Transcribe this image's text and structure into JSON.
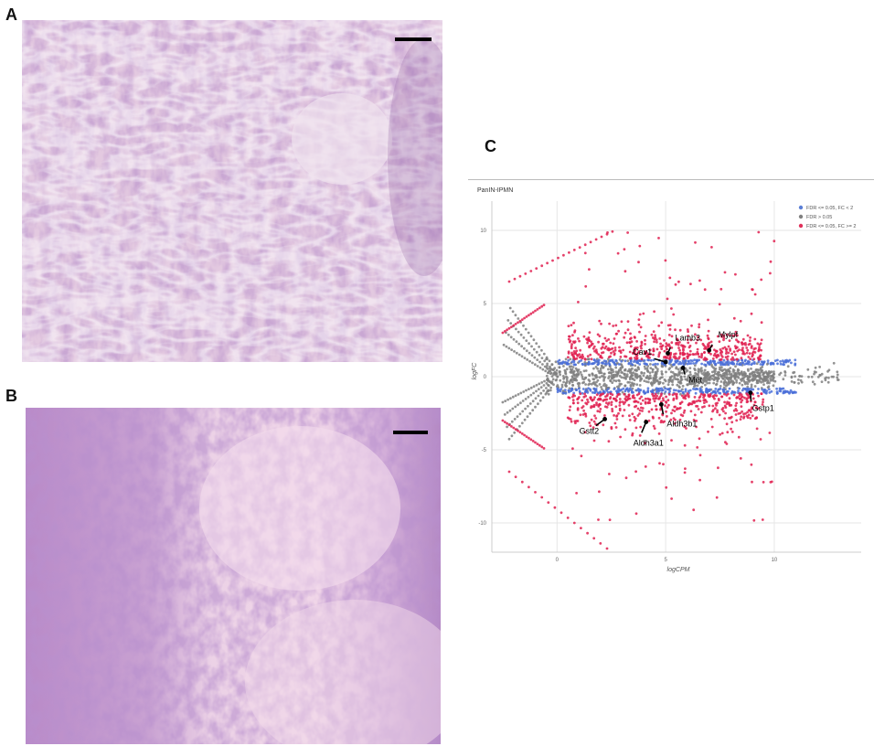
{
  "panels": {
    "a_label": "A",
    "b_label": "B",
    "c_label": "C"
  },
  "chart_data": {
    "type": "scatter",
    "title": "PanIN-IPMN",
    "xlabel": "logCPM",
    "ylabel": "logFC",
    "xlim": [
      -3,
      14
    ],
    "ylim": [
      -12,
      12
    ],
    "xticks": [
      "0",
      "5",
      "10"
    ],
    "yticks": [
      "10",
      "5",
      "0",
      "-5",
      "-10"
    ],
    "xtick_values": [
      0,
      5,
      10
    ],
    "ytick_values": [
      10,
      5,
      0,
      -5,
      -10
    ],
    "grid": true,
    "legend_position": "top-right",
    "legend": [
      {
        "label": "FDR <= 0.05, FC < 2",
        "color": "#5b7fd6"
      },
      {
        "label": "FDR > 0.05",
        "color": "#808080"
      },
      {
        "label": "FDR <= 0.05, FC >= 2",
        "color": "#e0305a"
      }
    ],
    "series_colors": {
      "not_significant": "#808080",
      "significant_low_fc": "#4a6fd8",
      "significant_high_fc": "#e02050"
    },
    "annotations": [
      {
        "label": "Lamb3",
        "x": 5.1,
        "y": 1.6
      },
      {
        "label": "Cav1",
        "x": 5.0,
        "y": 1.0
      },
      {
        "label": "Mylpf",
        "x": 7.0,
        "y": 1.8
      },
      {
        "label": "Met",
        "x": 5.8,
        "y": 0.6
      },
      {
        "label": "Gstp1",
        "x": 8.9,
        "y": -1.1
      },
      {
        "label": "Aldh3b1",
        "x": 4.8,
        "y": -1.9
      },
      {
        "label": "Gstt2",
        "x": 2.2,
        "y": -2.9
      },
      {
        "label": "Aldh3a1",
        "x": 4.1,
        "y": -3.1
      }
    ]
  }
}
